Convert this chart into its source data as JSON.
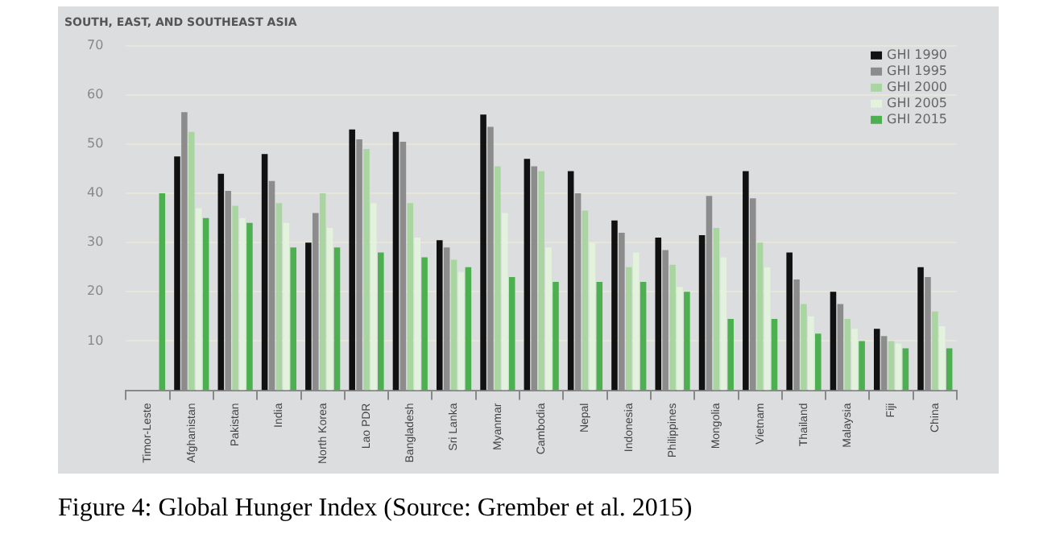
{
  "chart_data": {
    "type": "bar",
    "title": "SOUTH, EAST, AND SOUTHEAST ASIA",
    "categories": [
      "Timor-Leste",
      "Afghanistan",
      "Pakistan",
      "India",
      "North Korea",
      "Lao PDR",
      "Bangladesh",
      "Sri Lanka",
      "Myanmar",
      "Cambodia",
      "Nepal",
      "Indonesia",
      "Philippines",
      "Mongolia",
      "Vietnam",
      "Thailand",
      "Malaysia",
      "Fiji",
      "China"
    ],
    "series": [
      {
        "name": "GHI 1990",
        "color": "#111111",
        "values": [
          null,
          47.5,
          44,
          48,
          30,
          53,
          52.5,
          30.5,
          56,
          47,
          44.5,
          34.5,
          31,
          31.5,
          44.5,
          28,
          20,
          12.5,
          25
        ]
      },
      {
        "name": "GHI 1995",
        "color": "#8c8c8c",
        "values": [
          null,
          56.5,
          40.5,
          42.5,
          36,
          51,
          50.5,
          29,
          53.5,
          45.5,
          40,
          32,
          28.5,
          39.5,
          39,
          22.5,
          17.5,
          11,
          23
        ]
      },
      {
        "name": "GHI 2000",
        "color": "#a9d6a0",
        "values": [
          null,
          52.5,
          37.5,
          38,
          40,
          49,
          38,
          26.5,
          45.5,
          44.5,
          36.5,
          25,
          25.5,
          33,
          30,
          17.5,
          14.5,
          10,
          16
        ]
      },
      {
        "name": "GHI 2005",
        "color": "#e2f2dc",
        "values": [
          null,
          37,
          35,
          34,
          33,
          38,
          31,
          24,
          36,
          29,
          30,
          28,
          21,
          27,
          25,
          15,
          12.5,
          9.5,
          13
        ]
      },
      {
        "name": "GHI 2015",
        "color": "#4cb050",
        "values": [
          40,
          35,
          34,
          29,
          29,
          28,
          27,
          25,
          23,
          22,
          22,
          22,
          20,
          14.5,
          14.5,
          11.5,
          10,
          8.5,
          8.5
        ]
      }
    ],
    "ylim": [
      0,
      70
    ],
    "yticks": [
      10,
      20,
      30,
      40,
      50,
      60,
      70
    ],
    "grid": "y",
    "legend": "top right",
    "annotations": [
      "Figure 4: Global Hunger Index (Source: Grember et al. 2015)"
    ]
  }
}
